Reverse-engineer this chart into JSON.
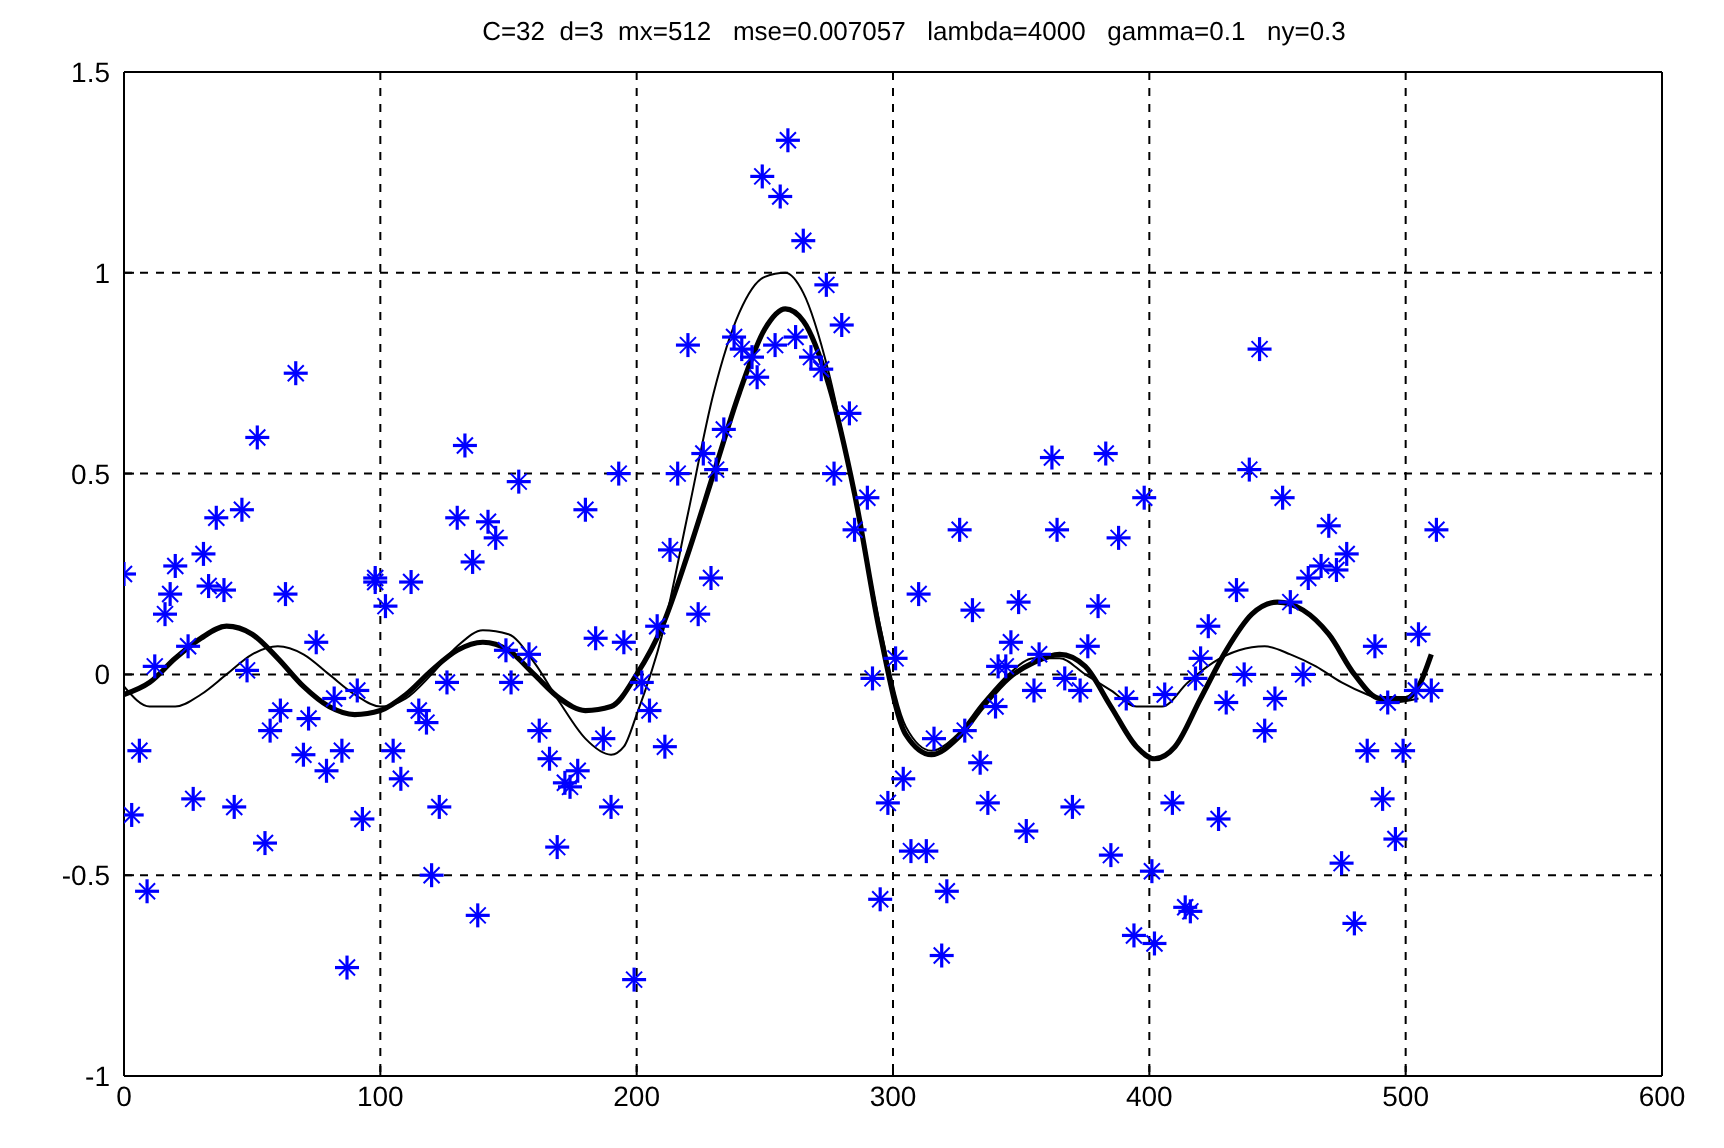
{
  "chart_data": {
    "type": "scatter",
    "title": "C=32  d=3  mx=512   mse=0.007057   lambda=4000   gamma=0.1   ny=0.3",
    "xlim": [
      0,
      600
    ],
    "xticks": [
      0,
      100,
      200,
      300,
      400,
      500,
      600
    ],
    "ylim": [
      -1,
      1.5
    ],
    "yticks": [
      -1,
      -0.5,
      0,
      0.5,
      1,
      1.5
    ],
    "grid": true,
    "marker": "cross",
    "series": [
      {
        "color": "#0000ff",
        "x": [
          0,
          3,
          6,
          9,
          12,
          16,
          18,
          20,
          25,
          27,
          31,
          33,
          36,
          39,
          43,
          46,
          48,
          52,
          55,
          57,
          61,
          63,
          67,
          70,
          72,
          75,
          79,
          82,
          85,
          87,
          91,
          93,
          98,
          98,
          102,
          105,
          108,
          112,
          115,
          118,
          120,
          123,
          126,
          130,
          133,
          136,
          138,
          142,
          145,
          149,
          151,
          154,
          158,
          162,
          166,
          169,
          172,
          174,
          177,
          180,
          184,
          187,
          190,
          193,
          195,
          199,
          202,
          205,
          208,
          211,
          213,
          216,
          220,
          224,
          226,
          229,
          231,
          234,
          238,
          241,
          245,
          247,
          249,
          254,
          256,
          259,
          262,
          265,
          268,
          272,
          274,
          277,
          280,
          283,
          285,
          290,
          292,
          295,
          298,
          301,
          304,
          307,
          310,
          313,
          316,
          319,
          321,
          326,
          328,
          331,
          334,
          337,
          340,
          341,
          344,
          346,
          349,
          352,
          355,
          357,
          362,
          364,
          367,
          370,
          373,
          376,
          380,
          383,
          385,
          388,
          391,
          394,
          398,
          401,
          402,
          406,
          409,
          414,
          416,
          418,
          420,
          423,
          427,
          430,
          434,
          437,
          439,
          443,
          445,
          449,
          452,
          455,
          460,
          462,
          467,
          470,
          473,
          475,
          477,
          480,
          485,
          488,
          491,
          493,
          496,
          499,
          504,
          505,
          510,
          512
        ],
        "values": [
          0.25,
          -0.35,
          -0.19,
          -0.54,
          0.02,
          0.15,
          0.2,
          0.27,
          0.07,
          -0.31,
          0.3,
          0.22,
          0.39,
          0.21,
          -0.33,
          0.41,
          0.01,
          0.59,
          -0.42,
          -0.14,
          -0.09,
          0.2,
          0.75,
          -0.2,
          -0.11,
          0.08,
          -0.24,
          -0.06,
          -0.19,
          -0.73,
          -0.04,
          -0.36,
          0.24,
          0.23,
          0.17,
          -0.19,
          -0.26,
          0.23,
          -0.09,
          -0.12,
          -0.5,
          -0.33,
          -0.02,
          0.39,
          0.57,
          0.28,
          -0.6,
          0.38,
          0.34,
          0.06,
          -0.02,
          0.48,
          0.05,
          -0.14,
          -0.21,
          -0.43,
          -0.27,
          -0.28,
          -0.24,
          0.41,
          0.09,
          -0.16,
          -0.33,
          0.5,
          0.08,
          -0.76,
          -0.02,
          -0.09,
          0.12,
          -0.18,
          0.31,
          0.5,
          0.82,
          0.15,
          0.55,
          0.24,
          0.51,
          0.61,
          0.84,
          0.81,
          0.79,
          0.74,
          1.24,
          0.82,
          1.19,
          1.33,
          0.84,
          1.08,
          0.79,
          0.76,
          0.97,
          0.5,
          0.87,
          0.65,
          0.36,
          0.44,
          -0.01,
          -0.56,
          -0.32,
          0.04,
          -0.26,
          -0.44,
          0.2,
          -0.44,
          -0.16,
          -0.7,
          -0.54,
          0.36,
          -0.14,
          0.16,
          -0.22,
          -0.32,
          -0.08,
          0.02,
          0.02,
          0.08,
          0.18,
          -0.39,
          -0.04,
          0.05,
          0.54,
          0.36,
          -0.01,
          -0.33,
          -0.04,
          0.07,
          0.17,
          0.55,
          -0.45,
          0.34,
          -0.06,
          -0.65,
          0.44,
          -0.49,
          -0.67,
          -0.05,
          -0.32,
          -0.58,
          -0.59,
          -0.01,
          0.04,
          0.12,
          -0.36,
          -0.07,
          0.21,
          0.0,
          0.51,
          0.81,
          -0.14,
          -0.06,
          0.44,
          0.18,
          0.0,
          0.24,
          0.27,
          0.37,
          0.26,
          -0.47,
          0.3,
          -0.62,
          -0.19,
          0.07,
          -0.31,
          -0.07,
          -0.41,
          -0.19,
          -0.04,
          0.1,
          -0.04,
          0.36
        ]
      },
      {
        "type": "line",
        "color": "#000000",
        "marker": "none",
        "x": [
          0,
          10,
          20,
          30,
          40,
          50,
          60,
          70,
          80,
          90,
          100,
          110,
          120,
          130,
          140,
          150,
          160,
          170,
          180,
          190,
          200,
          210,
          220,
          230,
          240,
          250,
          258,
          265,
          275,
          285,
          295,
          305,
          315,
          325,
          335,
          345,
          355,
          365,
          375,
          385,
          395,
          402,
          410,
          420,
          430,
          440,
          450,
          460,
          470,
          480,
          490,
          500,
          505,
          510
        ],
        "values": [
          -0.05,
          -0.02,
          0.04,
          0.09,
          0.12,
          0.1,
          0.04,
          -0.03,
          -0.08,
          -0.1,
          -0.09,
          -0.05,
          0.01,
          0.06,
          0.08,
          0.06,
          0.0,
          -0.06,
          -0.09,
          -0.08,
          0.0,
          0.12,
          0.3,
          0.5,
          0.7,
          0.86,
          0.91,
          0.88,
          0.72,
          0.45,
          0.1,
          -0.15,
          -0.2,
          -0.16,
          -0.08,
          -0.01,
          0.03,
          0.05,
          0.02,
          -0.08,
          -0.18,
          -0.21,
          -0.18,
          -0.06,
          0.06,
          0.15,
          0.18,
          0.16,
          0.1,
          0.0,
          -0.06,
          -0.06,
          -0.03,
          0.05
        ]
      },
      {
        "type": "line",
        "color": "#000000",
        "marker": "none",
        "x": [
          0,
          10,
          20,
          30,
          40,
          50,
          60,
          70,
          80,
          90,
          100,
          110,
          120,
          130,
          140,
          150,
          160,
          170,
          180,
          190,
          195,
          200,
          210,
          220,
          230,
          240,
          250,
          258,
          265,
          275,
          285,
          295,
          305,
          315,
          325,
          335,
          345,
          355,
          365,
          375,
          385,
          395,
          405,
          415,
          425,
          435,
          445,
          455,
          465,
          475,
          485,
          495,
          505
        ],
        "values": [
          -0.03,
          -0.08,
          -0.08,
          -0.05,
          0.0,
          0.05,
          0.07,
          0.05,
          0.0,
          -0.05,
          -0.08,
          -0.06,
          0.0,
          0.07,
          0.11,
          0.1,
          0.03,
          -0.07,
          -0.16,
          -0.2,
          -0.18,
          -0.1,
          0.1,
          0.4,
          0.7,
          0.9,
          0.99,
          1.0,
          0.95,
          0.75,
          0.45,
          0.12,
          -0.13,
          -0.19,
          -0.15,
          -0.07,
          0.0,
          0.04,
          0.04,
          0.0,
          -0.04,
          -0.08,
          -0.08,
          -0.02,
          0.03,
          0.06,
          0.07,
          0.05,
          0.02,
          -0.02,
          -0.05,
          -0.07,
          -0.06
        ]
      }
    ]
  }
}
